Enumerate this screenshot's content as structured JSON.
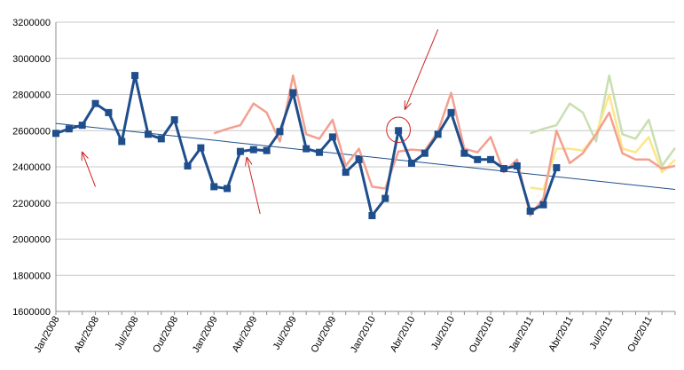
{
  "chart_data": {
    "type": "line",
    "title": "",
    "xlabel": "",
    "ylabel": "",
    "ylim": [
      1600000,
      3200000
    ],
    "yticks": [
      1600000,
      1800000,
      2000000,
      2200000,
      2400000,
      2600000,
      2800000,
      3000000,
      3200000
    ],
    "ytick_labels": [
      "1600000",
      "1800000",
      "2000000",
      "2200000",
      "2400000",
      "2600000",
      "2800000",
      "3000000",
      "3200000"
    ],
    "grid": true,
    "legend": "none",
    "x_start": "2008-01",
    "x_count": 48,
    "xtick_labels": [
      {
        "index": 0,
        "label": "Jan/2008"
      },
      {
        "index": 3,
        "label": "Abr/2008"
      },
      {
        "index": 6,
        "label": "Jul/2008"
      },
      {
        "index": 9,
        "label": "Out/2008"
      },
      {
        "index": 12,
        "label": "Jan/2009"
      },
      {
        "index": 15,
        "label": "Abr/2009"
      },
      {
        "index": 18,
        "label": "Jul/2009"
      },
      {
        "index": 21,
        "label": "Out/2009"
      },
      {
        "index": 24,
        "label": "Jan/2010"
      },
      {
        "index": 27,
        "label": "Abr/2010"
      },
      {
        "index": 30,
        "label": "Jul/2010"
      },
      {
        "index": 33,
        "label": "Out/2010"
      },
      {
        "index": 36,
        "label": "Jan/2011"
      },
      {
        "index": 39,
        "label": "Abr/2011"
      },
      {
        "index": 42,
        "label": "Jul/2011"
      },
      {
        "index": 45,
        "label": "Out/2011"
      }
    ],
    "series": [
      {
        "color": "#1f4e8c",
        "markers": true,
        "start_index": 0,
        "values": [
          2585000,
          2610000,
          2630000,
          2750000,
          2700000,
          2540000,
          2905000,
          2580000,
          2555000,
          2660000,
          2405000,
          2505000,
          2290000,
          2280000,
          2485000,
          2495000,
          2490000,
          2595000,
          2810000,
          2500000,
          2480000,
          2565000,
          2370000,
          2440000,
          2130000,
          2225000,
          2600000,
          2420000,
          2475000,
          2580000,
          2700000,
          2475000,
          2440000,
          2440000,
          2390000,
          2405000,
          2155000,
          2190000,
          2395000
        ]
      },
      {
        "color": "#f4a090",
        "markers": false,
        "start_index": 12,
        "values": [
          2585000,
          2610000,
          2630000,
          2750000,
          2700000,
          2540000,
          2905000,
          2580000,
          2555000,
          2660000,
          2405000,
          2500000,
          2290000,
          2280000,
          2485000,
          2495000,
          2490000,
          2595000,
          2810000,
          2500000,
          2480000,
          2565000,
          2370000,
          2440000,
          2130000,
          2225000,
          2600000,
          2420000,
          2475000,
          2580000,
          2700000,
          2475000,
          2440000,
          2440000,
          2390000,
          2405000
        ]
      },
      {
        "color": "#fde68a",
        "markers": false,
        "start_index": 36,
        "values": [
          2285000,
          2275000,
          2500000,
          2500000,
          2490000,
          2580000,
          2800000,
          2500000,
          2480000,
          2565000,
          2370000,
          2440000
        ]
      },
      {
        "color": "#c9dfb0",
        "markers": false,
        "start_index": 36,
        "values": [
          2585000,
          2610000,
          2630000,
          2750000,
          2700000,
          2540000,
          2905000,
          2580000,
          2555000,
          2660000,
          2405000,
          2505000
        ]
      }
    ],
    "trendline": {
      "color": "#1f4e8c",
      "start_index": 0,
      "end_index": 47,
      "start_value": 2640000,
      "end_value": 2275000
    },
    "annotations": [
      {
        "type": "arrow",
        "color": "#cc2222",
        "from": [
          3.0,
          2290000
        ],
        "to": [
          2.0,
          2480000
        ]
      },
      {
        "type": "arrow",
        "color": "#cc2222",
        "from": [
          15.5,
          2140000
        ],
        "to": [
          14.5,
          2450000
        ]
      },
      {
        "type": "arrow",
        "color": "#cc2222",
        "from": [
          29.0,
          3160000
        ],
        "to": [
          26.5,
          2720000
        ]
      },
      {
        "type": "ellipse",
        "color": "#cc2222",
        "center": [
          26.0,
          2605000
        ],
        "rx_index": 0.9,
        "ry_value": 70000
      }
    ]
  }
}
